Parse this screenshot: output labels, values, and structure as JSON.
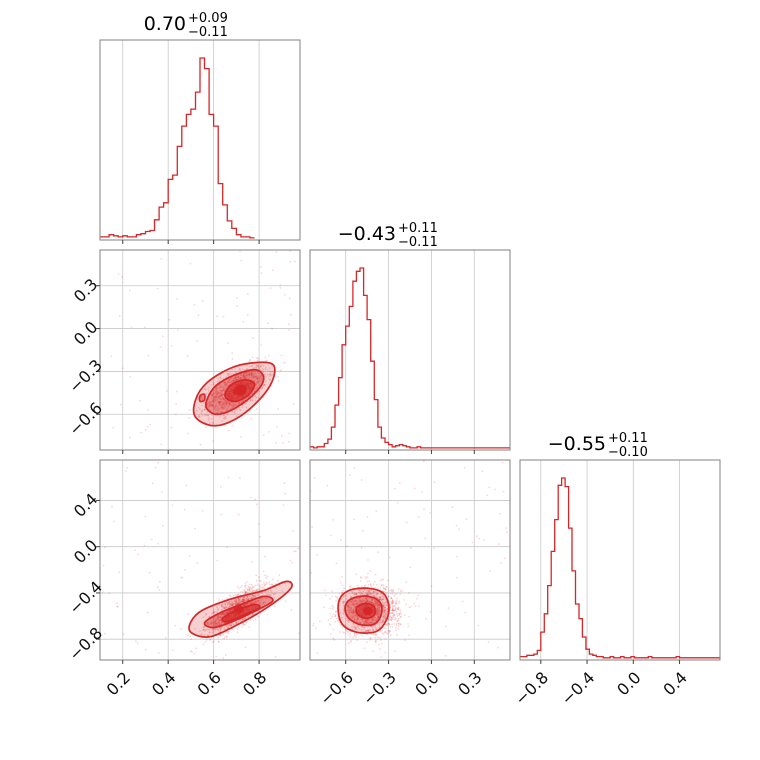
{
  "chart_data": {
    "type": "corner",
    "color": "#d62728",
    "parameters": [
      {
        "title": {
          "median": "0.70",
          "plus": "+0.09",
          "minus": "−0.11"
        },
        "range": [
          0.1,
          0.98
        ],
        "ticks": [
          0.2,
          0.4,
          0.6,
          0.8
        ],
        "tick_labels": [
          "0.2",
          "0.4",
          "0.6",
          "0.8"
        ],
        "hist": {
          "bin_edges_start": 0.1,
          "bin_width": 0.02,
          "counts": [
            2,
            2,
            4,
            3,
            2,
            3,
            2,
            2,
            4,
            5,
            7,
            8,
            18,
            30,
            34,
            56,
            60,
            87,
            106,
            117,
            122,
            138,
            170,
            160,
            117,
            106,
            52,
            32,
            17,
            10,
            4,
            2,
            2,
            1
          ]
        }
      },
      {
        "title": {
          "median": "−0.43",
          "plus": "+0.11",
          "minus": "−0.11"
        },
        "range": [
          -0.85,
          0.55
        ],
        "ticks": [
          -0.6,
          -0.3,
          0.0,
          0.3
        ],
        "tick_labels": [
          "−0.6",
          "−0.3",
          "0.0",
          "0.3"
        ],
        "hist": {
          "bin_edges_start": -0.85,
          "bin_width": 0.025,
          "counts": [
            2,
            1,
            2,
            2,
            5,
            9,
            20,
            40,
            65,
            95,
            112,
            130,
            153,
            162,
            165,
            140,
            118,
            80,
            45,
            20,
            10,
            6,
            4,
            2,
            3,
            4,
            3,
            2,
            1,
            1,
            2,
            1,
            1,
            1,
            1,
            1,
            1,
            1,
            1,
            1,
            1,
            1,
            1,
            1,
            1,
            1,
            1,
            1,
            1,
            1,
            1,
            1,
            1,
            1,
            1,
            1
          ]
        }
      },
      {
        "title": {
          "median": "−0.55",
          "plus": "+0.11",
          "minus": "−0.10"
        },
        "range": [
          -0.98,
          0.75
        ],
        "ticks": [
          -0.8,
          -0.4,
          0.0,
          0.4
        ],
        "tick_labels": [
          "−0.8",
          "−0.4",
          "0.0",
          "0.4"
        ],
        "hist": {
          "bin_edges_start": -0.98,
          "bin_width": 0.03,
          "counts": [
            2,
            2,
            3,
            3,
            4,
            7,
            22,
            37,
            60,
            88,
            114,
            142,
            148,
            141,
            107,
            72,
            45,
            33,
            18,
            8,
            4,
            3,
            2,
            2,
            1,
            1,
            2,
            1,
            1,
            2,
            1,
            1,
            2,
            1,
            1,
            1,
            1,
            2,
            1,
            1,
            1,
            1,
            1,
            1,
            1,
            2,
            1,
            1,
            1,
            1,
            1,
            1,
            1,
            1,
            1,
            1,
            1,
            1
          ]
        }
      }
    ],
    "pairs": [
      {
        "row": 1,
        "col": 0,
        "y_range": [
          -0.85,
          0.55
        ],
        "y_ticks": [
          -0.6,
          -0.3,
          0.0,
          0.3
        ],
        "y_tick_labels": [
          "−0.6",
          "−0.3",
          "0.0",
          "0.3"
        ],
        "center": [
          0.7,
          -0.43
        ],
        "corr": 0.6,
        "contour_levels": [
          [
            [
              0.52,
              -0.5
            ],
            [
              0.57,
              -0.38
            ],
            [
              0.67,
              -0.28
            ],
            [
              0.77,
              -0.24
            ],
            [
              0.86,
              -0.25
            ],
            [
              0.86,
              -0.36
            ],
            [
              0.8,
              -0.5
            ],
            [
              0.7,
              -0.63
            ],
            [
              0.6,
              -0.68
            ],
            [
              0.52,
              -0.62
            ]
          ],
          [
            [
              0.57,
              -0.5
            ],
            [
              0.61,
              -0.4
            ],
            [
              0.7,
              -0.32
            ],
            [
              0.79,
              -0.29
            ],
            [
              0.82,
              -0.36
            ],
            [
              0.77,
              -0.47
            ],
            [
              0.68,
              -0.57
            ],
            [
              0.61,
              -0.6
            ],
            [
              0.57,
              -0.56
            ]
          ],
          [
            [
              0.65,
              -0.47
            ],
            [
              0.68,
              -0.39
            ],
            [
              0.74,
              -0.36
            ],
            [
              0.78,
              -0.39
            ],
            [
              0.75,
              -0.47
            ],
            [
              0.69,
              -0.51
            ]
          ],
          [
            [
              0.69,
              -0.45
            ],
            [
              0.71,
              -0.4
            ],
            [
              0.74,
              -0.41
            ],
            [
              0.73,
              -0.46
            ]
          ]
        ],
        "core": [
          [
            0.71,
            -0.42
          ],
          [
            0.72,
            -0.44
          ]
        ],
        "extra_blob": [
          [
            0.54,
            -0.47
          ],
          [
            0.56,
            -0.46
          ],
          [
            0.56,
            -0.5
          ],
          [
            0.54,
            -0.51
          ]
        ]
      },
      {
        "row": 2,
        "col": 0,
        "y_range": [
          -0.98,
          0.75
        ],
        "y_ticks": [
          -0.8,
          -0.4,
          0.0,
          0.4
        ],
        "y_tick_labels": [
          "−0.8",
          "−0.4",
          "0.0",
          "0.4"
        ],
        "center": [
          0.7,
          -0.55
        ],
        "corr": 0.75,
        "contour_levels": [
          [
            [
              0.5,
              -0.65
            ],
            [
              0.55,
              -0.55
            ],
            [
              0.68,
              -0.45
            ],
            [
              0.82,
              -0.38
            ],
            [
              0.92,
              -0.3
            ],
            [
              0.94,
              -0.36
            ],
            [
              0.84,
              -0.52
            ],
            [
              0.7,
              -0.68
            ],
            [
              0.58,
              -0.78
            ],
            [
              0.5,
              -0.74
            ]
          ],
          [
            [
              0.56,
              -0.66
            ],
            [
              0.62,
              -0.58
            ],
            [
              0.72,
              -0.5
            ],
            [
              0.82,
              -0.43
            ],
            [
              0.86,
              -0.47
            ],
            [
              0.78,
              -0.56
            ],
            [
              0.68,
              -0.65
            ],
            [
              0.6,
              -0.7
            ]
          ],
          [
            [
              0.64,
              -0.62
            ],
            [
              0.7,
              -0.55
            ],
            [
              0.78,
              -0.5
            ],
            [
              0.8,
              -0.53
            ],
            [
              0.72,
              -0.6
            ],
            [
              0.66,
              -0.65
            ]
          ]
        ],
        "core": [
          [
            0.7,
            -0.53
          ],
          [
            0.72,
            -0.55
          ]
        ]
      },
      {
        "row": 2,
        "col": 1,
        "x_range": [
          -0.85,
          0.55
        ],
        "y_range": [
          -0.98,
          0.75
        ],
        "center": [
          -0.43,
          -0.55
        ],
        "corr": 0.0,
        "contour_levels": [
          [
            [
              -0.65,
              -0.48
            ],
            [
              -0.58,
              -0.38
            ],
            [
              -0.44,
              -0.36
            ],
            [
              -0.34,
              -0.4
            ],
            [
              -0.3,
              -0.5
            ],
            [
              -0.31,
              -0.62
            ],
            [
              -0.38,
              -0.73
            ],
            [
              -0.52,
              -0.74
            ],
            [
              -0.63,
              -0.66
            ]
          ],
          [
            [
              -0.6,
              -0.5
            ],
            [
              -0.54,
              -0.44
            ],
            [
              -0.44,
              -0.43
            ],
            [
              -0.36,
              -0.48
            ],
            [
              -0.35,
              -0.58
            ],
            [
              -0.4,
              -0.67
            ],
            [
              -0.51,
              -0.67
            ],
            [
              -0.59,
              -0.6
            ]
          ],
          [
            [
              -0.52,
              -0.52
            ],
            [
              -0.46,
              -0.49
            ],
            [
              -0.4,
              -0.52
            ],
            [
              -0.4,
              -0.59
            ],
            [
              -0.46,
              -0.62
            ],
            [
              -0.52,
              -0.58
            ]
          ]
        ],
        "core": [
          [
            -0.45,
            -0.54
          ],
          [
            -0.44,
            -0.57
          ]
        ]
      }
    ]
  }
}
